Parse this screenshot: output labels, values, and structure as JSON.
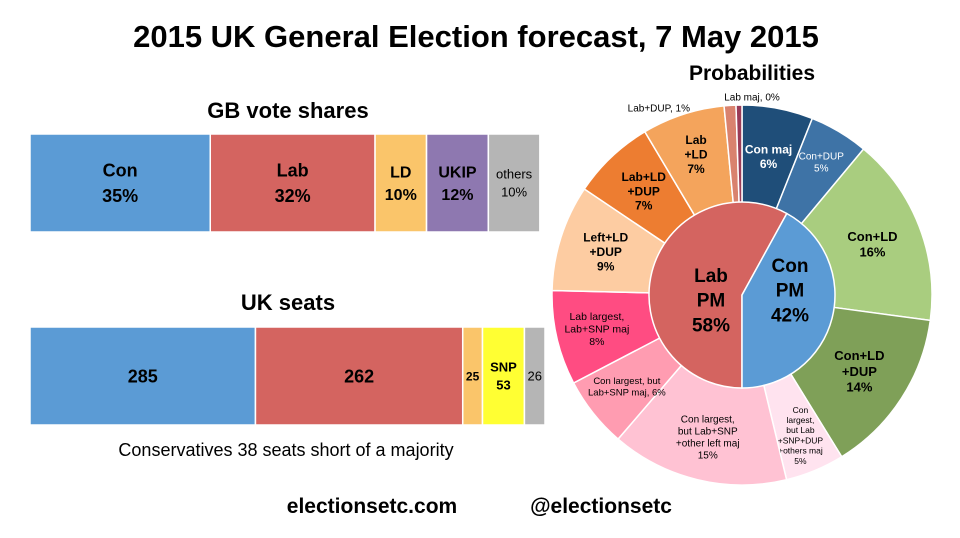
{
  "title": "2015 UK General Election forecast, 7 May 2015",
  "footer": {
    "website": "electionsetc.com",
    "twitter": "@electionsetc"
  },
  "colors": {
    "con": "#5b9bd5",
    "lab": "#d46460",
    "ld": "#fac56a",
    "ukip": "#8e78b0",
    "snp": "#ffff33",
    "others": "#b5b5b5"
  },
  "chart_data": [
    {
      "type": "bar",
      "stacked": true,
      "orientation": "horizontal",
      "title": "GB vote shares",
      "xlim": [
        0,
        100
      ],
      "unit": "%",
      "series": [
        {
          "name": "Con",
          "value": 35,
          "label": "35%",
          "color": "#5b9bd5"
        },
        {
          "name": "Lab",
          "value": 32,
          "label": "32%",
          "color": "#d46460"
        },
        {
          "name": "LD",
          "value": 10,
          "label": "10%",
          "color": "#fac56a"
        },
        {
          "name": "UKIP",
          "value": 12,
          "label": "12%",
          "color": "#8e78b0"
        },
        {
          "name": "others",
          "value": 10,
          "label": "10%",
          "color": "#b5b5b5"
        }
      ]
    },
    {
      "type": "bar",
      "stacked": true,
      "orientation": "horizontal",
      "title": "UK seats",
      "xlim": [
        0,
        651
      ],
      "note": "Conservatives 38 seats short of a majority",
      "series": [
        {
          "name": "",
          "value": 285,
          "label": "285",
          "color": "#5b9bd5"
        },
        {
          "name": "",
          "value": 262,
          "label": "262",
          "color": "#d46460"
        },
        {
          "name": "",
          "value": 25,
          "label": "25",
          "color": "#fac56a"
        },
        {
          "name": "SNP",
          "value": 53,
          "label": "53",
          "color": "#ffff33"
        },
        {
          "name": "",
          "value": 26,
          "label": "26",
          "color": "#b5b5b5"
        }
      ]
    },
    {
      "type": "pie",
      "variant": "nested-donut",
      "title": "Probabilities",
      "inner": [
        {
          "name": "Lab PM",
          "value": 58,
          "label": "58%",
          "color": "#d46460"
        },
        {
          "name": "Con PM",
          "value": 42,
          "label": "42%",
          "color": "#5b9bd5"
        }
      ],
      "outer": [
        {
          "name": "Con maj",
          "value": 6,
          "label": "6%",
          "color": "#1f4e79"
        },
        {
          "name": "Con+DUP",
          "value": 5,
          "label": "5%",
          "color": "#3e73a6"
        },
        {
          "name": "Con+LD",
          "value": 16,
          "label": "16%",
          "color": "#a9cd7f"
        },
        {
          "name": "Con+LD +DUP",
          "value": 14,
          "label": "14%",
          "color": "#7fa058"
        },
        {
          "name": "Con largest, but Lab +SNP+DUP +others maj",
          "value": 5,
          "label": "5%",
          "color": "#ffe3ef"
        },
        {
          "name": "Con largest, but Lab+SNP +other left maj",
          "value": 15,
          "label": "15%",
          "color": "#ffc2d3"
        },
        {
          "name": "Con largest, but Lab+SNP maj,",
          "value": 6,
          "label": "6%",
          "color": "#ff9cb1"
        },
        {
          "name": "Lab largest, Lab+SNP maj",
          "value": 8,
          "label": "8%",
          "color": "#ff4c82"
        },
        {
          "name": "Left+LD +DUP",
          "value": 9,
          "label": "9%",
          "color": "#fdcca2"
        },
        {
          "name": "Lab+LD +DUP",
          "value": 7,
          "label": "7%",
          "color": "#ed7d31"
        },
        {
          "name": "Lab +LD",
          "value": 7,
          "label": "7%",
          "color": "#f4a45c"
        },
        {
          "name": "Lab+DUP,",
          "value": 1,
          "label": "1%",
          "color": "#d9826e"
        },
        {
          "name": "Lab maj,",
          "value": 0.5,
          "label": "0%",
          "color": "#9a3b57"
        }
      ]
    }
  ]
}
